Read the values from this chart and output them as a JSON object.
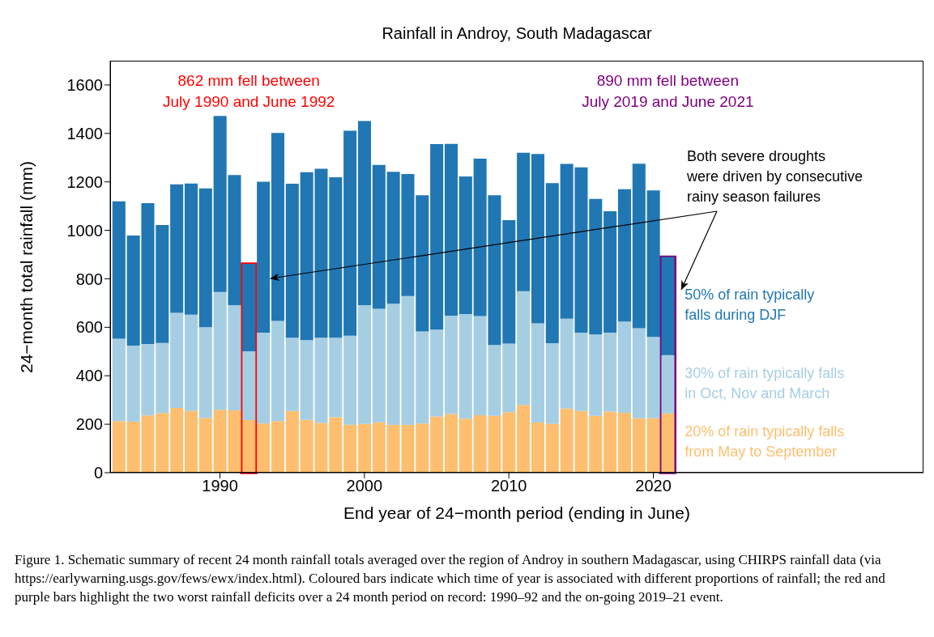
{
  "chart_data": {
    "type": "bar",
    "title": "Rainfall in Androy, South Madagascar",
    "xlabel": "End year of 24−month period (ending in June)",
    "ylabel": "24−month total rainfall (mm)",
    "stacked": true,
    "grid": false,
    "legend": false,
    "x": [
      1983,
      1984,
      1985,
      1986,
      1987,
      1988,
      1989,
      1990,
      1991,
      1992,
      1993,
      1994,
      1995,
      1996,
      1997,
      1998,
      1999,
      2000,
      2001,
      2002,
      2003,
      2004,
      2005,
      2006,
      2007,
      2008,
      2009,
      2010,
      2011,
      2012,
      2013,
      2014,
      2015,
      2016,
      2017,
      2018,
      2019,
      2020,
      2021
    ],
    "series": [
      {
        "name": "20% of rain typically falls\nfrom May to September",
        "color": "#fdbf6f",
        "values": [
          213,
          210,
          236,
          246,
          267,
          255,
          226,
          260,
          257,
          217,
          203,
          213,
          255,
          218,
          205,
          229,
          198,
          201,
          208,
          197,
          197,
          203,
          232,
          242,
          223,
          237,
          235,
          250,
          280,
          207,
          201,
          265,
          255,
          235,
          252,
          247,
          225,
          225,
          245
        ]
      },
      {
        "name": "30% of rain typically falls\nin Oct, Nov and March",
        "color": "#a6cee3",
        "values": [
          340,
          314,
          295,
          289,
          393,
          397,
          374,
          486,
          434,
          284,
          375,
          413,
          302,
          329,
          352,
          328,
          367,
          490,
          468,
          500,
          532,
          380,
          358,
          406,
          432,
          409,
          292,
          283,
          469,
          409,
          333,
          370,
          323,
          335,
          326,
          377,
          371,
          335,
          240
        ]
      },
      {
        "name": "50% of rain typically\nfalls during DJF",
        "color": "#2077b4",
        "values": [
          567,
          455,
          581,
          487,
          530,
          541,
          573,
          726,
          537,
          361,
          623,
          776,
          635,
          693,
          697,
          662,
          846,
          760,
          594,
          545,
          503,
          562,
          766,
          709,
          567,
          650,
          618,
          509,
          571,
          699,
          661,
          639,
          682,
          560,
          501,
          546,
          679,
          605,
          405
        ]
      }
    ],
    "xlim": [
      1982.4,
      2038.7
    ],
    "xticks": [
      1990,
      2000,
      2010,
      2020
    ],
    "ylim": [
      0,
      1700
    ],
    "yticks": [
      0,
      200,
      400,
      600,
      800,
      1000,
      1200,
      1400,
      1600
    ],
    "bands": [
      {
        "axis": "x",
        "from": 1991.5,
        "to": 1992.5,
        "color": "#ff0000",
        "label": "862 mm fell between\nJuly 1990 and June 1992"
      },
      {
        "axis": "x",
        "from": 2020.5,
        "to": 2021.5,
        "color": "#800080",
        "label": "890 mm fell between\nJuly 2019 and June 2021"
      }
    ],
    "annotations": [
      "Both severe droughts\nwere driven by consecutive\nrainy season failures",
      "Figure 1. Schematic summary of recent 24 month rainfall totals averaged over the region of Androy in southern Madagascar, using CHIRPS rainfall data (via https://earlywarning.usgs.gov/fews/ewx/index.html). Coloured bars indicate which time of year is associated with different proportions of rainfall; the red and purple bars highlight the two worst rainfall deficits over a 24 month period on record: 1990–92 and the on-going 2019–21 event."
    ]
  }
}
